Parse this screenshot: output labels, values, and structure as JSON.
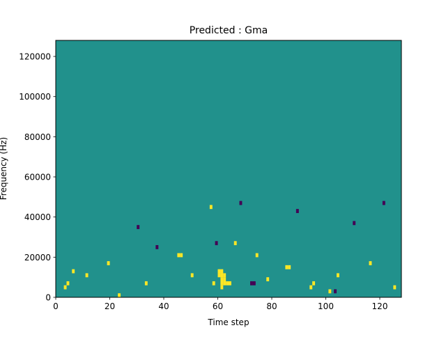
{
  "chart_data": {
    "type": "heatmap",
    "title": "Predicted : Gma",
    "xlabel": "Time step",
    "ylabel": "Frequency (Hz)",
    "xlim": [
      0,
      128
    ],
    "ylim": [
      0,
      128000
    ],
    "grid": false,
    "x_ticks": [
      0,
      20,
      40,
      60,
      80,
      100,
      120
    ],
    "y_ticks": [
      0,
      20000,
      40000,
      60000,
      80000,
      100000,
      120000
    ],
    "n_time_steps": 128,
    "n_frequency_bins": 64,
    "bin_height_hz": 2000,
    "colormap": "viridis",
    "value_levels": [
      -1,
      0,
      1
    ],
    "colors": {
      "-1": "#440154",
      "0": "#21918c",
      "1": "#fde725"
    },
    "background_value": 0,
    "cells": [
      {
        "x": 3,
        "y": 2,
        "v": 1
      },
      {
        "x": 4,
        "y": 3,
        "v": 1
      },
      {
        "x": 6,
        "y": 6,
        "v": 1
      },
      {
        "x": 11,
        "y": 5,
        "v": 1
      },
      {
        "x": 19,
        "y": 8,
        "v": 1
      },
      {
        "x": 23,
        "y": 0,
        "v": 1
      },
      {
        "x": 30,
        "y": 17,
        "v": -1
      },
      {
        "x": 33,
        "y": 3,
        "v": 1
      },
      {
        "x": 37,
        "y": 12,
        "v": -1
      },
      {
        "x": 45,
        "y": 10,
        "v": 1
      },
      {
        "x": 46,
        "y": 10,
        "v": 1
      },
      {
        "x": 50,
        "y": 5,
        "v": 1
      },
      {
        "x": 57,
        "y": 22,
        "v": 1
      },
      {
        "x": 58,
        "y": 3,
        "v": 1
      },
      {
        "x": 59,
        "y": 13,
        "v": -1
      },
      {
        "x": 60,
        "y": 5,
        "v": 1
      },
      {
        "x": 60,
        "y": 6,
        "v": 1
      },
      {
        "x": 61,
        "y": 2,
        "v": 1
      },
      {
        "x": 61,
        "y": 3,
        "v": 1
      },
      {
        "x": 61,
        "y": 4,
        "v": 1
      },
      {
        "x": 61,
        "y": 5,
        "v": 1
      },
      {
        "x": 61,
        "y": 6,
        "v": 1
      },
      {
        "x": 62,
        "y": 3,
        "v": 1
      },
      {
        "x": 62,
        "y": 4,
        "v": 1
      },
      {
        "x": 62,
        "y": 5,
        "v": 1
      },
      {
        "x": 63,
        "y": 3,
        "v": 1
      },
      {
        "x": 64,
        "y": 3,
        "v": 1
      },
      {
        "x": 66,
        "y": 13,
        "v": 1
      },
      {
        "x": 68,
        "y": 23,
        "v": -1
      },
      {
        "x": 72,
        "y": 3,
        "v": -1
      },
      {
        "x": 73,
        "y": 3,
        "v": -1
      },
      {
        "x": 74,
        "y": 10,
        "v": 1
      },
      {
        "x": 78,
        "y": 4,
        "v": 1
      },
      {
        "x": 85,
        "y": 7,
        "v": 1
      },
      {
        "x": 86,
        "y": 7,
        "v": 1
      },
      {
        "x": 89,
        "y": 21,
        "v": -1
      },
      {
        "x": 94,
        "y": 2,
        "v": 1
      },
      {
        "x": 95,
        "y": 3,
        "v": 1
      },
      {
        "x": 101,
        "y": 1,
        "v": 1
      },
      {
        "x": 103,
        "y": 1,
        "v": -1
      },
      {
        "x": 104,
        "y": 5,
        "v": 1
      },
      {
        "x": 110,
        "y": 18,
        "v": -1
      },
      {
        "x": 116,
        "y": 8,
        "v": 1
      },
      {
        "x": 121,
        "y": 23,
        "v": -1
      },
      {
        "x": 125,
        "y": 2,
        "v": 1
      }
    ]
  }
}
